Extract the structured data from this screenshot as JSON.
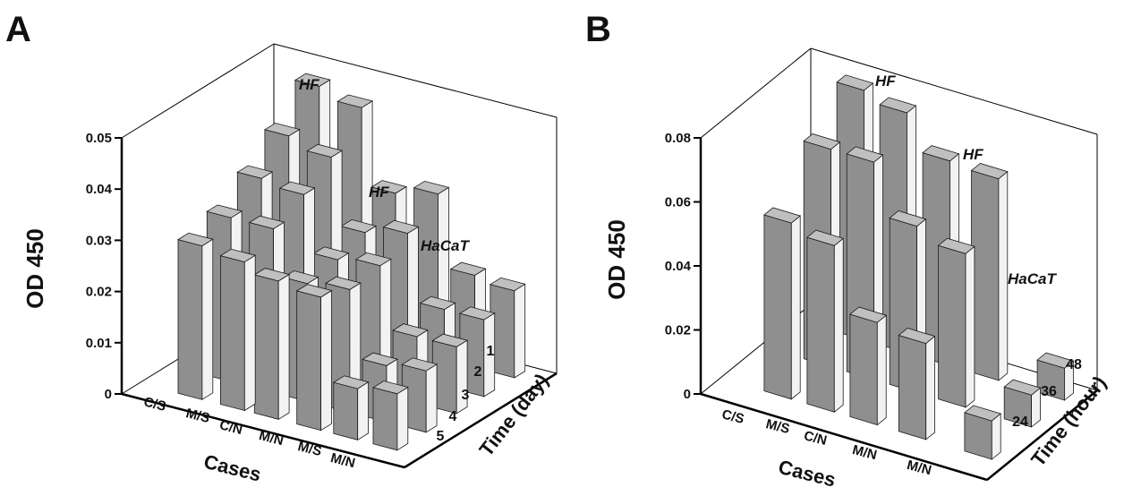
{
  "chart_data": [
    {
      "panel": "A",
      "type": "bar3d",
      "ylabel": "OD 450",
      "xlabel": "Cases",
      "zlabel": "Time (day)",
      "ylim": [
        0,
        0.05
      ],
      "yticks": [
        "0",
        "0.01",
        "0.02",
        "0.03",
        "0.04",
        "0.05"
      ],
      "categories": [
        "C/S",
        "M/S",
        "C/N",
        "M/N",
        "M/S",
        "M/N"
      ],
      "z": [
        "1",
        "2",
        "3",
        "4",
        "5"
      ],
      "group_labels": [
        "HF",
        "HF",
        "HaCaT"
      ],
      "values": [
        [
          0.047,
          0.041,
          0.036,
          0.032,
          0.03
        ],
        [
          0.045,
          0.039,
          0.035,
          0.032,
          0.029
        ],
        [
          0.03,
          0.026,
          0.024,
          0.023,
          0.027
        ],
        [
          0.032,
          0.028,
          0.025,
          0.024,
          0.026
        ],
        [
          0.018,
          0.015,
          0.013,
          0.011,
          0.01
        ],
        [
          0.017,
          0.015,
          0.013,
          0.012,
          0.011
        ]
      ]
    },
    {
      "panel": "B",
      "type": "bar3d",
      "ylabel": "OD 450",
      "xlabel": "Cases",
      "zlabel": "Time (hour)",
      "ylim": [
        0,
        0.08
      ],
      "yticks": [
        "0",
        "0.02",
        "0.04",
        "0.06",
        "0.08"
      ],
      "categories": [
        "C/S",
        "M/S",
        "C/N",
        "M/N",
        "M/N"
      ],
      "z": [
        "48",
        "36",
        "24"
      ],
      "group_labels": [
        "HF",
        "HF",
        "HaCaT"
      ],
      "values": [
        [
          0.078,
          0.068,
          0.055
        ],
        [
          0.075,
          0.068,
          0.052
        ],
        [
          0.064,
          0.052,
          0.032
        ],
        [
          0.063,
          0.048,
          0.03
        ],
        [
          0.01,
          0.01,
          0.012
        ]
      ]
    }
  ]
}
